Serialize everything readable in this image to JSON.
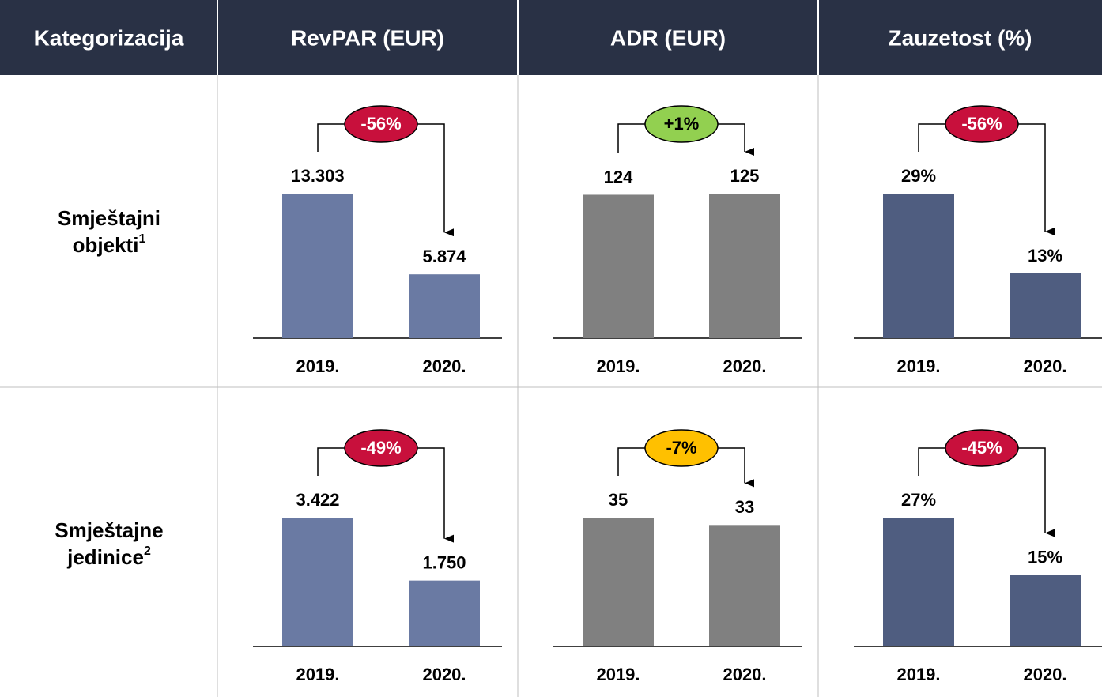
{
  "table": {
    "header": [
      "Kategorizacija",
      "RevPAR (EUR)",
      "ADR (EUR)",
      "Zauzetost (%)"
    ],
    "rows": [
      {
        "label": [
          "Smještajni",
          "objekti"
        ],
        "note": "1"
      },
      {
        "label": [
          "Smještajne",
          "jedinice"
        ],
        "note": "2"
      }
    ]
  },
  "chart_data": [
    {
      "type": "bar",
      "categories": [
        "2019.",
        "2020."
      ],
      "values": [
        13303,
        5874
      ],
      "value_labels": [
        "13.303",
        "5.874"
      ],
      "color": "#6a7aa3",
      "change": {
        "label": "-56%",
        "color": "#c8103c"
      }
    },
    {
      "type": "bar",
      "categories": [
        "2019.",
        "2020."
      ],
      "values": [
        124,
        125
      ],
      "color": "#808080",
      "change": {
        "label": "+1%",
        "color": "#92d050"
      }
    },
    {
      "type": "bar",
      "categories": [
        "2019.",
        "2020."
      ],
      "values": [
        29,
        13
      ],
      "value_labels": [
        "29%",
        "13%"
      ],
      "color": "#4f5d80",
      "change": {
        "label": "-56%",
        "color": "#c8103c"
      }
    },
    {
      "type": "bar",
      "categories": [
        "2019.",
        "2020."
      ],
      "values": [
        3422,
        1750
      ],
      "value_labels": [
        "3.422",
        "1.750"
      ],
      "color": "#6a7aa3",
      "change": {
        "label": "-49%",
        "color": "#c8103c"
      }
    },
    {
      "type": "bar",
      "categories": [
        "2019.",
        "2020."
      ],
      "values": [
        35,
        33
      ],
      "color": "#808080",
      "change": {
        "label": "-7%",
        "color": "#ffc000"
      }
    },
    {
      "type": "bar",
      "categories": [
        "2019.",
        "2020."
      ],
      "values": [
        27,
        15
      ],
      "value_labels": [
        "27%",
        "15%"
      ],
      "color": "#4f5d80",
      "change": {
        "label": "-45%",
        "color": "#c8103c"
      }
    }
  ]
}
